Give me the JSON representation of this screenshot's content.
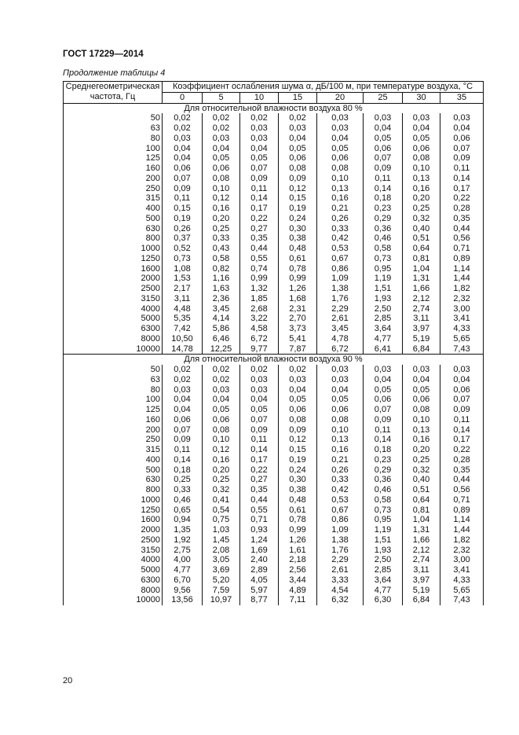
{
  "header": {
    "doc_code": "ГОСТ 17229—2014",
    "caption": "Продолжение таблицы 4"
  },
  "table": {
    "col_freq_header": "Среднегеометрическая частота, Гц",
    "col_group_header": "Коэффициент ослабления шума α, дБ/100 м, при температуре воздуха, °С",
    "temperatures": [
      "0",
      "5",
      "10",
      "15",
      "20",
      "25",
      "30",
      "35"
    ],
    "sections": [
      {
        "title": "Для относительной влажности воздуха 80 %",
        "rows": [
          [
            "50",
            "0,02",
            "0,02",
            "0,02",
            "0,02",
            "0,03",
            "0,03",
            "0,03",
            "0,03"
          ],
          [
            "63",
            "0,02",
            "0,02",
            "0,03",
            "0,03",
            "0,03",
            "0,04",
            "0,04",
            "0,04"
          ],
          [
            "80",
            "0,03",
            "0,03",
            "0,03",
            "0,04",
            "0,04",
            "0,05",
            "0,05",
            "0,06"
          ],
          [
            "100",
            "0,04",
            "0,04",
            "0,04",
            "0,05",
            "0,05",
            "0,06",
            "0,06",
            "0,07"
          ],
          [
            "125",
            "0,04",
            "0,05",
            "0,05",
            "0,06",
            "0,06",
            "0,07",
            "0,08",
            "0,09"
          ],
          [
            "160",
            "0,06",
            "0,06",
            "0,07",
            "0,08",
            "0,08",
            "0,09",
            "0,10",
            "0,11"
          ],
          [
            "200",
            "0,07",
            "0,08",
            "0,09",
            "0,09",
            "0,10",
            "0,11",
            "0,13",
            "0,14"
          ],
          [
            "250",
            "0,09",
            "0,10",
            "0,11",
            "0,12",
            "0,13",
            "0,14",
            "0,16",
            "0,17"
          ],
          [
            "315",
            "0,11",
            "0,12",
            "0,14",
            "0,15",
            "0,16",
            "0,18",
            "0,20",
            "0,22"
          ],
          [
            "400",
            "0,15",
            "0,16",
            "0,17",
            "0,19",
            "0,21",
            "0,23",
            "0,25",
            "0,28"
          ],
          [
            "500",
            "0,19",
            "0,20",
            "0,22",
            "0,24",
            "0,26",
            "0,29",
            "0,32",
            "0,35"
          ],
          [
            "630",
            "0,26",
            "0,25",
            "0,27",
            "0,30",
            "0,33",
            "0,36",
            "0,40",
            "0,44"
          ],
          [
            "800",
            "0,37",
            "0,33",
            "0,35",
            "0,38",
            "0,42",
            "0,46",
            "0,51",
            "0,56"
          ],
          [
            "1000",
            "0,52",
            "0,43",
            "0,44",
            "0,48",
            "0,53",
            "0,58",
            "0,64",
            "0,71"
          ],
          [
            "1250",
            "0,73",
            "0,58",
            "0,55",
            "0,61",
            "0,67",
            "0,73",
            "0,81",
            "0,89"
          ],
          [
            "1600",
            "1,08",
            "0,82",
            "0,74",
            "0,78",
            "0,86",
            "0,95",
            "1,04",
            "1,14"
          ],
          [
            "2000",
            "1,53",
            "1,16",
            "0,99",
            "0,99",
            "1,09",
            "1,19",
            "1,31",
            "1,44"
          ],
          [
            "2500",
            "2,17",
            "1,63",
            "1,32",
            "1,26",
            "1,38",
            "1,51",
            "1,66",
            "1,82"
          ],
          [
            "3150",
            "3,11",
            "2,36",
            "1,85",
            "1,68",
            "1,76",
            "1,93",
            "2,12",
            "2,32"
          ],
          [
            "4000",
            "4,48",
            "3,45",
            "2,68",
            "2,31",
            "2,29",
            "2,50",
            "2,74",
            "3,00"
          ],
          [
            "5000",
            "5,35",
            "4,14",
            "3,22",
            "2,70",
            "2,61",
            "2,85",
            "3,11",
            "3,41"
          ],
          [
            "6300",
            "7,42",
            "5,86",
            "4,58",
            "3,73",
            "3,45",
            "3,64",
            "3,97",
            "4,33"
          ],
          [
            "8000",
            "10,50",
            "6,46",
            "6,72",
            "5,41",
            "4,78",
            "4,77",
            "5,19",
            "5,65"
          ],
          [
            "10000",
            "14,78",
            "12,25",
            "9,77",
            "7,87",
            "6,72",
            "6,41",
            "6,84",
            "7,43"
          ]
        ]
      },
      {
        "title": "Для относительной влажности воздуха 90 %",
        "rows": [
          [
            "50",
            "0,02",
            "0,02",
            "0,02",
            "0,02",
            "0,03",
            "0,03",
            "0,03",
            "0,03"
          ],
          [
            "63",
            "0,02",
            "0,02",
            "0,03",
            "0,03",
            "0,03",
            "0,04",
            "0,04",
            "0,04"
          ],
          [
            "80",
            "0,03",
            "0,03",
            "0,03",
            "0,04",
            "0,04",
            "0,05",
            "0,05",
            "0,06"
          ],
          [
            "100",
            "0,04",
            "0,04",
            "0,04",
            "0,05",
            "0,05",
            "0,06",
            "0,06",
            "0,07"
          ],
          [
            "125",
            "0,04",
            "0,05",
            "0,05",
            "0,06",
            "0,06",
            "0,07",
            "0,08",
            "0,09"
          ],
          [
            "160",
            "0,06",
            "0,06",
            "0,07",
            "0,08",
            "0,08",
            "0,09",
            "0,10",
            "0,11"
          ],
          [
            "200",
            "0,07",
            "0,08",
            "0,09",
            "0,09",
            "0,10",
            "0,11",
            "0,13",
            "0,14"
          ],
          [
            "250",
            "0,09",
            "0,10",
            "0,11",
            "0,12",
            "0,13",
            "0,14",
            "0,16",
            "0,17"
          ],
          [
            "315",
            "0,11",
            "0,12",
            "0,14",
            "0,15",
            "0,16",
            "0,18",
            "0,20",
            "0,22"
          ],
          [
            "400",
            "0,14",
            "0,16",
            "0,17",
            "0,19",
            "0,21",
            "0,23",
            "0,25",
            "0,28"
          ],
          [
            "500",
            "0,18",
            "0,20",
            "0,22",
            "0,24",
            "0,26",
            "0,29",
            "0,32",
            "0,35"
          ],
          [
            "630",
            "0,25",
            "0,25",
            "0,27",
            "0,30",
            "0,33",
            "0,36",
            "0,40",
            "0,44"
          ],
          [
            "800",
            "0,33",
            "0,32",
            "0,35",
            "0,38",
            "0,42",
            "0,46",
            "0,51",
            "0,56"
          ],
          [
            "1000",
            "0,46",
            "0,41",
            "0,44",
            "0,48",
            "0,53",
            "0,58",
            "0,64",
            "0,71"
          ],
          [
            "1250",
            "0,65",
            "0,54",
            "0,55",
            "0,61",
            "0,67",
            "0,73",
            "0,81",
            "0,89"
          ],
          [
            "1600",
            "0,94",
            "0,75",
            "0,71",
            "0,78",
            "0,86",
            "0,95",
            "1,04",
            "1,14"
          ],
          [
            "2000",
            "1,35",
            "1,03",
            "0,93",
            "0,99",
            "1,09",
            "1,19",
            "1,31",
            "1,44"
          ],
          [
            "2500",
            "1,92",
            "1,45",
            "1,24",
            "1,26",
            "1,38",
            "1,51",
            "1,66",
            "1,82"
          ],
          [
            "3150",
            "2,75",
            "2,08",
            "1,69",
            "1,61",
            "1,76",
            "1,93",
            "2,12",
            "2,32"
          ],
          [
            "4000",
            "4,00",
            "3,05",
            "2,40",
            "2,18",
            "2,29",
            "2,50",
            "2,74",
            "3,00"
          ],
          [
            "5000",
            "4,77",
            "3,69",
            "2,89",
            "2,56",
            "2,61",
            "2,85",
            "3,11",
            "3,41"
          ],
          [
            "6300",
            "6,70",
            "5,20",
            "4,05",
            "3,44",
            "3,33",
            "3,64",
            "3,97",
            "4,33"
          ],
          [
            "8000",
            "9,56",
            "7,59",
            "5,97",
            "4,89",
            "4,54",
            "4,77",
            "5,19",
            "5,65"
          ],
          [
            "10000",
            "13,56",
            "10,97",
            "8,77",
            "7,11",
            "6,32",
            "6,30",
            "6,84",
            "7,43"
          ]
        ]
      }
    ]
  },
  "footer": {
    "page_number": "20"
  }
}
